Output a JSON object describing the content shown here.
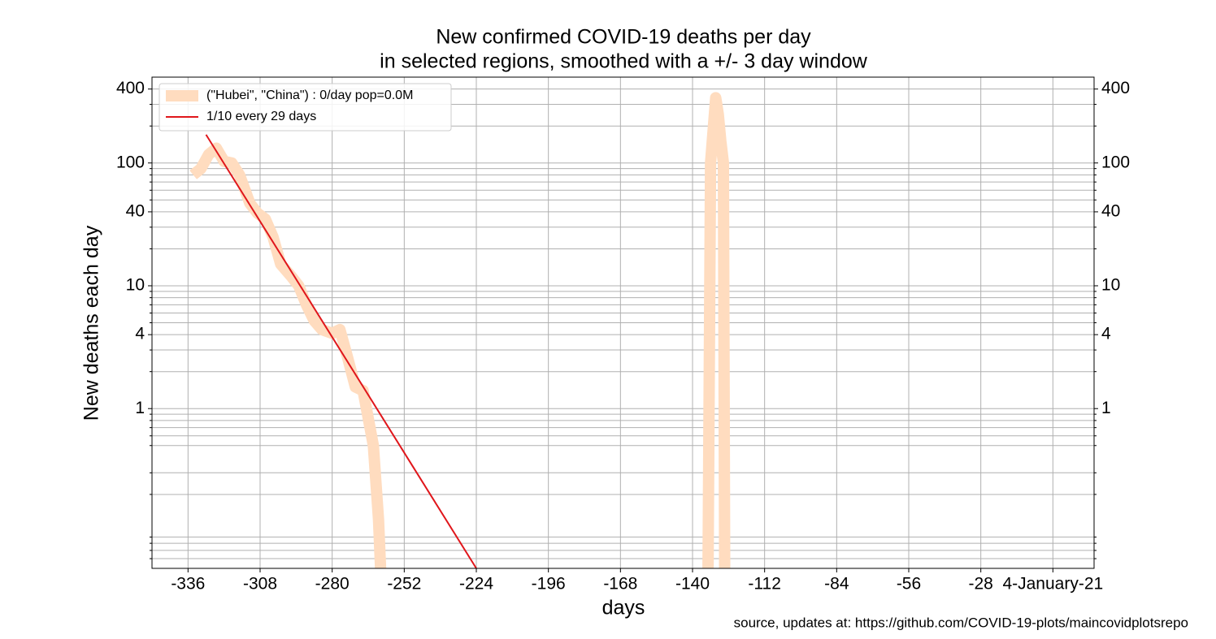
{
  "chart_data": {
    "type": "line",
    "title": [
      "New confirmed COVID-19 deaths per day",
      "in selected regions, smoothed with a +/- 3 day window"
    ],
    "x_label": "days",
    "y_label": "New deaths each day",
    "source": "source, updates at: https://github.com/COVID-19-plots/maincovidplotsrepo",
    "log_y": true,
    "grid": true,
    "legend": "upper left",
    "xlim": [
      -350,
      16
    ],
    "ylim": [
      0.05,
      500
    ],
    "xticks": [
      -336,
      -308,
      -280,
      -252,
      -224,
      -196,
      -168,
      -140,
      -112,
      -84,
      -56,
      -28,
      {
        "value": 0,
        "label": "4-January-21"
      }
    ],
    "yticks": [
      1,
      4,
      10,
      40,
      100,
      400
    ],
    "yticks_minor": [
      0.06,
      0.07,
      0.08,
      0.09,
      0.2,
      0.3,
      0.5,
      0.6,
      0.7,
      0.8,
      0.9,
      2,
      3,
      5,
      6,
      7,
      8,
      9,
      20,
      30,
      50,
      60,
      70,
      80,
      90,
      200,
      300
    ],
    "series": [
      {
        "name": "(\"Hubei\", \"China\") : 0/day pop=0.0M",
        "color": "#ffdcbf",
        "width": 14,
        "x": [
          -334,
          -331,
          -328,
          -325,
          -322,
          -319,
          -316,
          -312,
          -309,
          -306,
          -303,
          -300,
          -296,
          -293,
          -290,
          -287,
          -284,
          -280,
          -277,
          -274,
          -271,
          -268,
          -264,
          -262,
          -261,
          null,
          -134,
          -133,
          -131,
          -130,
          -129,
          -128,
          -127.5
        ],
        "values": [
          80,
          90,
          117,
          132,
          103,
          100,
          80,
          47,
          39,
          35,
          25,
          15,
          12,
          10,
          7,
          5.2,
          4.4,
          4.1,
          4.4,
          2.6,
          1.5,
          1.4,
          0.5,
          0.125,
          0.04,
          null,
          0.04,
          100,
          340,
          250,
          150,
          100,
          0.04
        ]
      },
      {
        "name": "1/10 every 29 days",
        "color": "#e0161b",
        "width": 2,
        "x": [
          -329,
          -224
        ],
        "values": [
          170,
          0.05
        ]
      }
    ]
  }
}
